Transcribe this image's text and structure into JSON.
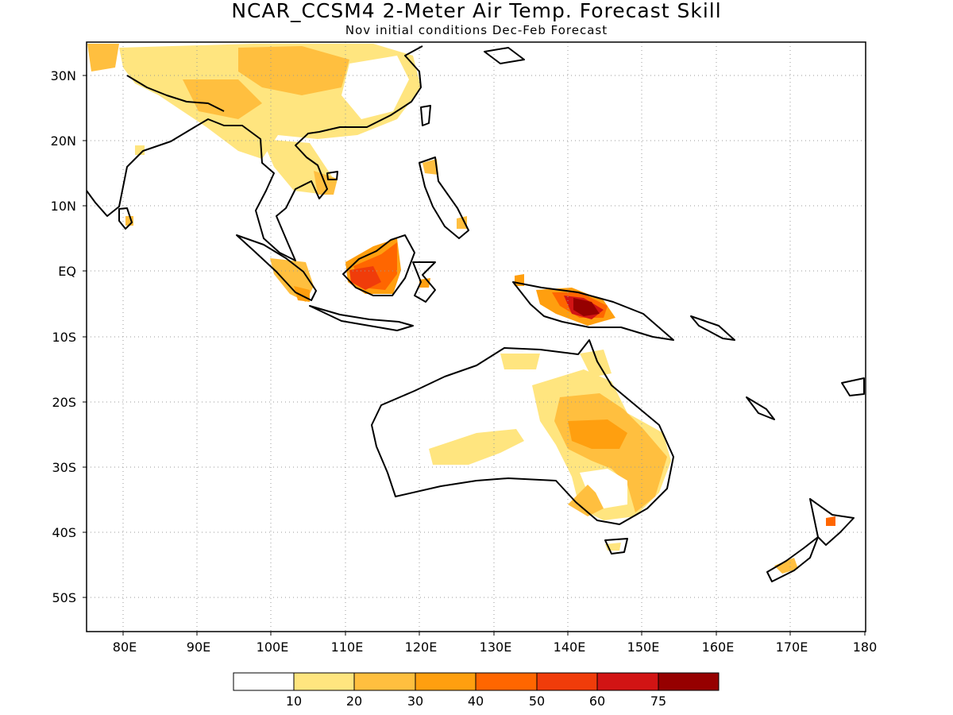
{
  "title": "NCAR_CCSM4 2-Meter Air Temp. Forecast Skill",
  "subtitle": "Nov initial conditions  Dec-Feb Forecast",
  "lat_ticks": [
    "30N",
    "20N",
    "10N",
    "EQ",
    "10S",
    "20S",
    "30S",
    "40S",
    "50S"
  ],
  "lon_ticks": [
    "80E",
    "90E",
    "100E",
    "110E",
    "120E",
    "130E",
    "140E",
    "150E",
    "160E",
    "170E",
    "180"
  ],
  "colorbar": {
    "labels": [
      "10",
      "20",
      "30",
      "40",
      "50",
      "60",
      "75"
    ],
    "colors": [
      "#ffffff",
      "#ffe57f",
      "#ffbf3f",
      "#ff9f0f",
      "#ff6600",
      "#f03c0a",
      "#d21414",
      "#960000"
    ]
  },
  "map_extent": {
    "lon": [
      75,
      180
    ],
    "lat": [
      -55,
      35
    ]
  }
}
